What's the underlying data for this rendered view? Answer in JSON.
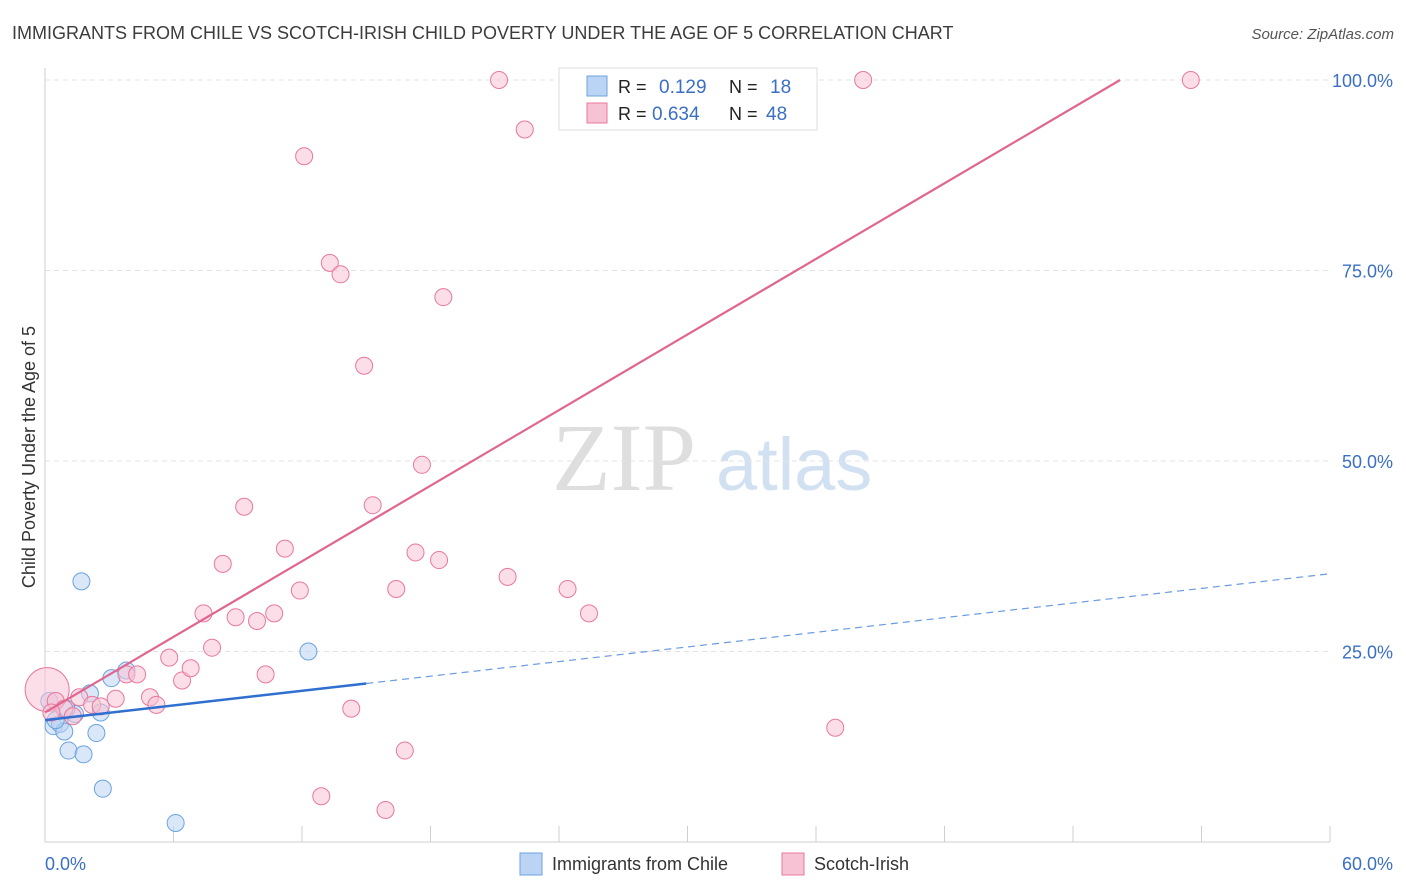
{
  "title": "IMMIGRANTS FROM CHILE VS SCOTCH-IRISH CHILD POVERTY UNDER THE AGE OF 5 CORRELATION CHART",
  "source": "Source: ZipAtlas.com",
  "watermark": {
    "zip": "ZIP",
    "atlas": "atlas"
  },
  "legend_box": {
    "rows": [
      {
        "r_label": "R =",
        "r_value": "0.129",
        "n_label": "N =",
        "n_value": "18"
      },
      {
        "r_label": "R =",
        "r_value": "0.634",
        "n_label": "N =",
        "n_value": "48"
      }
    ]
  },
  "chart_data": {
    "type": "scatter",
    "title": "IMMIGRANTS FROM CHILE VS SCOTCH-IRISH CHILD POVERTY UNDER THE AGE OF 5 CORRELATION CHART",
    "xlabel": "",
    "ylabel": "Child Poverty Under the Age of 5",
    "xlim": [
      0,
      60
    ],
    "ylim": [
      0,
      102
    ],
    "x_tick_labels": [
      "0.0%",
      "60.0%"
    ],
    "y_ticks": [
      25,
      50,
      75,
      100
    ],
    "y_tick_labels": [
      "25.0%",
      "50.0%",
      "75.0%",
      "100.0%"
    ],
    "grid": true,
    "legend_position": "bottom-center",
    "series": [
      {
        "name": "Immigrants from Chile",
        "color": "#6aa3e0",
        "fill": "#bcd4f3",
        "r": 0.129,
        "n": 18,
        "trend": {
          "x0": 0,
          "y0": 16.0,
          "x1": 15.0,
          "y1": 20.8,
          "dash_to_x": 60,
          "dash_to_y": 35.2
        },
        "points": [
          [
            0.2,
            18.5
          ],
          [
            0.4,
            15.2
          ],
          [
            0.7,
            15.5
          ],
          [
            0.9,
            14.5
          ],
          [
            1.1,
            12.0
          ],
          [
            1.4,
            16.8
          ],
          [
            1.7,
            34.2
          ],
          [
            1.8,
            11.5
          ],
          [
            2.1,
            19.5
          ],
          [
            2.4,
            14.3
          ],
          [
            2.6,
            17.0
          ],
          [
            2.7,
            7.0
          ],
          [
            3.1,
            21.5
          ],
          [
            3.8,
            22.5
          ],
          [
            6.1,
            2.5
          ],
          [
            12.3,
            25.0
          ],
          [
            0.5,
            16.0
          ],
          [
            1.0,
            17.5
          ]
        ]
      },
      {
        "name": "Scotch-Irish",
        "color": "#e9789e",
        "fill": "#f7c2d3",
        "r": 0.634,
        "n": 48,
        "trend": {
          "x0": 0,
          "y0": 17.0,
          "x1": 50.2,
          "y1": 100.0
        },
        "points": [
          [
            0.1,
            20.0
          ],
          [
            0.5,
            18.5
          ],
          [
            0.9,
            17.5
          ],
          [
            1.3,
            16.5
          ],
          [
            1.6,
            19.0
          ],
          [
            2.2,
            18.0
          ],
          [
            2.6,
            17.8
          ],
          [
            3.3,
            18.8
          ],
          [
            3.8,
            22.0
          ],
          [
            4.3,
            22.0
          ],
          [
            4.9,
            19.0
          ],
          [
            5.2,
            18.0
          ],
          [
            5.8,
            24.2
          ],
          [
            6.4,
            21.2
          ],
          [
            6.8,
            22.8
          ],
          [
            7.4,
            30.0
          ],
          [
            7.8,
            25.5
          ],
          [
            8.3,
            36.5
          ],
          [
            8.9,
            29.5
          ],
          [
            9.3,
            44.0
          ],
          [
            9.9,
            29.0
          ],
          [
            10.3,
            22.0
          ],
          [
            10.7,
            30.0
          ],
          [
            11.2,
            38.5
          ],
          [
            11.9,
            33.0
          ],
          [
            12.1,
            90.0
          ],
          [
            12.9,
            6.0
          ],
          [
            13.3,
            76.0
          ],
          [
            13.8,
            74.5
          ],
          [
            14.3,
            17.5
          ],
          [
            14.9,
            62.5
          ],
          [
            15.3,
            44.2
          ],
          [
            15.9,
            4.2
          ],
          [
            16.4,
            33.2
          ],
          [
            16.8,
            12.0
          ],
          [
            17.3,
            38.0
          ],
          [
            17.6,
            49.5
          ],
          [
            18.4,
            37.0
          ],
          [
            18.6,
            71.5
          ],
          [
            21.2,
            100.0
          ],
          [
            21.6,
            34.8
          ],
          [
            22.4,
            93.5
          ],
          [
            24.4,
            33.2
          ],
          [
            25.4,
            30.0
          ],
          [
            36.9,
            15.0
          ],
          [
            38.2,
            100.0
          ],
          [
            53.5,
            100.0
          ],
          [
            0.3,
            17.0
          ]
        ]
      }
    ]
  }
}
